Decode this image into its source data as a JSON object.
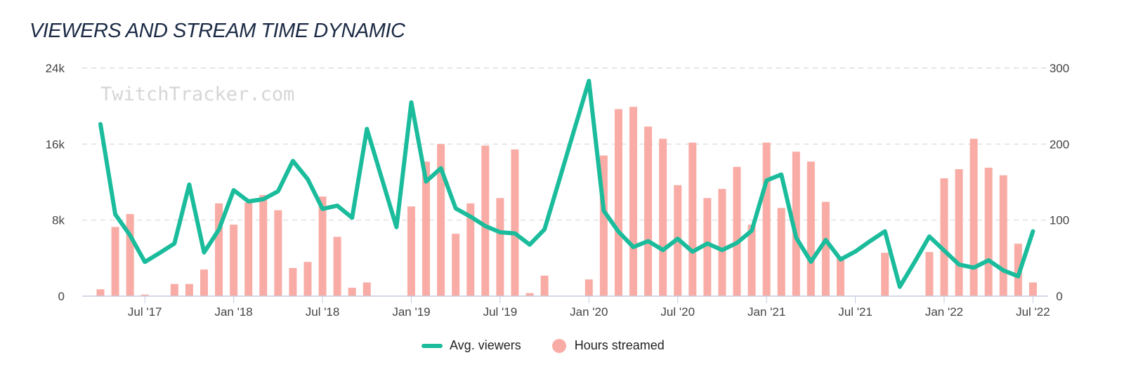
{
  "title": "VIEWERS AND STREAM TIME DYNAMIC",
  "watermark": "TwitchTracker.com",
  "chart_data": {
    "type": "bar+line",
    "title": "VIEWERS AND STREAM TIME DYNAMIC",
    "grid": true,
    "legend_position": "bottom",
    "x": [
      "2017-04",
      "2017-05",
      "2017-06",
      "2017-07",
      "2017-08",
      "2017-09",
      "2017-10",
      "2017-11",
      "2017-12",
      "2018-01",
      "2018-02",
      "2018-03",
      "2018-04",
      "2018-05",
      "2018-06",
      "2018-07",
      "2018-08",
      "2018-09",
      "2018-10",
      "2018-11",
      "2018-12",
      "2019-01",
      "2019-02",
      "2019-03",
      "2019-04",
      "2019-05",
      "2019-06",
      "2019-07",
      "2019-08",
      "2019-09",
      "2019-10",
      "2019-11",
      "2019-12",
      "2020-01",
      "2020-02",
      "2020-03",
      "2020-04",
      "2020-05",
      "2020-06",
      "2020-07",
      "2020-08",
      "2020-09",
      "2020-10",
      "2020-11",
      "2020-12",
      "2021-01",
      "2021-02",
      "2021-03",
      "2021-04",
      "2021-05",
      "2021-06",
      "2021-07",
      "2021-08",
      "2021-09",
      "2021-10",
      "2021-11",
      "2021-12",
      "2022-01",
      "2022-02",
      "2022-03",
      "2022-04",
      "2022-05",
      "2022-06",
      "2022-07"
    ],
    "x_tick_labels": [
      "Jul '17",
      "Jan '18",
      "Jul '18",
      "Jan '19",
      "Jul '19",
      "Jan '20",
      "Jul '20",
      "Jan '21",
      "Jul '21",
      "Jan '22",
      "Jul '22"
    ],
    "x_tick_months": [
      "2017-07",
      "2018-01",
      "2018-07",
      "2019-01",
      "2019-07",
      "2020-01",
      "2020-07",
      "2021-01",
      "2021-07",
      "2022-01",
      "2022-07"
    ],
    "y_left": {
      "range": [
        0,
        24000
      ],
      "tick_labels": [
        "0",
        "8k",
        "16k",
        "24k"
      ],
      "ticks": [
        0,
        8000,
        16000,
        24000
      ]
    },
    "y_right": {
      "range": [
        0,
        300
      ],
      "tick_labels": [
        "0",
        "100",
        "200",
        "300"
      ],
      "ticks": [
        0,
        100,
        200,
        300
      ]
    },
    "series": [
      {
        "name": "Avg. viewers",
        "type": "line",
        "axis": "left",
        "color": "#1abc9c",
        "values": [
          18100,
          8600,
          6400,
          3600,
          4550,
          5540,
          11740,
          4600,
          7000,
          11150,
          9970,
          10200,
          11030,
          14230,
          12310,
          9180,
          9520,
          8250,
          17600,
          12430,
          7260,
          20380,
          12060,
          13460,
          9230,
          8370,
          7380,
          6720,
          6600,
          5420,
          7020,
          12230,
          17450,
          22650,
          8990,
          6770,
          5170,
          5790,
          4850,
          6030,
          4680,
          5540,
          4850,
          5600,
          6890,
          12180,
          12800,
          6150,
          3620,
          5910,
          3860,
          4700,
          5790,
          6820,
          985,
          3570,
          6280,
          4800,
          3320,
          3000,
          3770,
          2710,
          2090,
          6820
        ]
      },
      {
        "name": "Hours streamed",
        "type": "bar",
        "axis": "right",
        "color": "#f9aca5",
        "values": [
          9,
          91,
          108,
          2,
          0,
          16,
          16,
          35,
          122,
          94,
          123,
          133,
          113,
          37,
          45,
          131,
          78,
          11,
          18,
          0,
          0,
          118,
          177,
          200,
          82,
          122,
          198,
          129,
          193,
          4,
          27,
          0,
          0,
          22,
          185,
          246,
          249,
          223,
          207,
          146,
          202,
          129,
          141,
          170,
          94,
          202,
          116,
          190,
          177,
          124,
          52,
          0,
          0,
          57,
          0,
          0,
          58,
          155,
          167,
          207,
          169,
          159,
          69,
          18
        ]
      }
    ]
  }
}
